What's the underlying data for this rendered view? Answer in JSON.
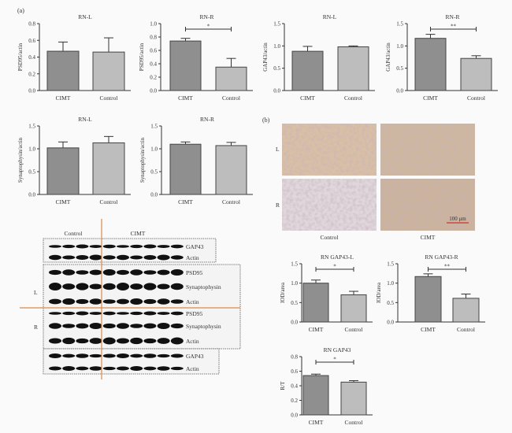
{
  "panel_labels": {
    "a": "(a)",
    "b": "(b)"
  },
  "colors": {
    "cimt_bar": "#8f8f8f",
    "control_bar": "#bdbdbd",
    "guide_line": "#d98a4a",
    "scale_bar": "#d03030"
  },
  "chart_data": [
    {
      "type": "bar",
      "title": "RN-L",
      "ylabel": "PSD95/actin",
      "categories": [
        "CIMT",
        "Control"
      ],
      "values": [
        0.47,
        0.46
      ],
      "error_top": [
        0.58,
        0.63
      ],
      "ylim": [
        0,
        0.8
      ],
      "yticks": [
        "0.0",
        "0.2",
        "0.4",
        "0.6",
        "0.8"
      ],
      "significance": ""
    },
    {
      "type": "bar",
      "title": "RN-R",
      "ylabel": "PSD95/actin",
      "categories": [
        "CIMT",
        "Control"
      ],
      "values": [
        0.74,
        0.35
      ],
      "error_top": [
        0.78,
        0.48
      ],
      "ylim": [
        0,
        1.0
      ],
      "yticks": [
        "0.0",
        "0.2",
        "0.4",
        "0.6",
        "0.8",
        "1.0"
      ],
      "significance": "*"
    },
    {
      "type": "bar",
      "title": "RN-L",
      "ylabel": "GAP43/actin",
      "categories": [
        "CIMT",
        "Control"
      ],
      "values": [
        0.88,
        0.98
      ],
      "error_top": [
        0.99,
        1.0
      ],
      "ylim": [
        0,
        1.5
      ],
      "yticks": [
        "0.0",
        "0.5",
        "1.0",
        "1.5"
      ],
      "significance": ""
    },
    {
      "type": "bar",
      "title": "RN-R",
      "ylabel": "GAP43/actin",
      "categories": [
        "CIMT",
        "Control"
      ],
      "values": [
        1.17,
        0.72
      ],
      "error_top": [
        1.26,
        0.78
      ],
      "ylim": [
        0,
        1.5
      ],
      "yticks": [
        "0.0",
        "0.5",
        "1.0",
        "1.5"
      ],
      "significance": "**"
    },
    {
      "type": "bar",
      "title": "RN-L",
      "ylabel": "Synaptophysin/actin",
      "categories": [
        "CIMT",
        "Control"
      ],
      "values": [
        1.02,
        1.13
      ],
      "error_top": [
        1.15,
        1.27
      ],
      "ylim": [
        0,
        1.5
      ],
      "yticks": [
        "0.0",
        "0.5",
        "1.0",
        "1.5"
      ],
      "significance": ""
    },
    {
      "type": "bar",
      "title": "RN-R",
      "ylabel": "Synaptophysin/actin",
      "categories": [
        "CIMT",
        "Control"
      ],
      "values": [
        1.1,
        1.07
      ],
      "error_top": [
        1.15,
        1.14
      ],
      "ylim": [
        0,
        1.5
      ],
      "yticks": [
        "0.0",
        "0.5",
        "1.0",
        "1.5"
      ],
      "significance": ""
    },
    {
      "type": "bar",
      "title": "RN GAP43-L",
      "ylabel": "IOD/area",
      "categories": [
        "CIMT",
        "Control"
      ],
      "values": [
        1.0,
        0.7
      ],
      "error_top": [
        1.08,
        0.79
      ],
      "ylim": [
        0,
        1.5
      ],
      "yticks": [
        "0.0",
        "0.5",
        "1.0",
        "1.5"
      ],
      "significance": "*"
    },
    {
      "type": "bar",
      "title": "RN GAP43-R",
      "ylabel": "IOD/area",
      "categories": [
        "CIMT",
        "Control"
      ],
      "values": [
        1.17,
        0.61
      ],
      "error_top": [
        1.24,
        0.72
      ],
      "ylim": [
        0,
        1.5
      ],
      "yticks": [
        "0.0",
        "0.5",
        "1.0",
        "1.5"
      ],
      "significance": "**"
    },
    {
      "type": "bar",
      "title": "RN GAP43",
      "ylabel": "R/T",
      "categories": [
        "CIMT",
        "Control"
      ],
      "values": [
        0.54,
        0.45
      ],
      "error_top": [
        0.56,
        0.47
      ],
      "ylim": [
        0,
        0.8
      ],
      "yticks": [
        "0.0",
        "0.2",
        "0.4",
        "0.6",
        "0.8"
      ],
      "significance": "*"
    }
  ],
  "western_blot": {
    "group_labels": [
      "Control",
      "CIMT"
    ],
    "side_labels": [
      "L",
      "R"
    ],
    "rows": [
      "GAP43",
      "Actin",
      "PSD95",
      "Synaptophysin",
      "Actin",
      "PSD95",
      "Synaptophysin",
      "Actin",
      "GAP43",
      "Actin"
    ],
    "lanes": 10
  },
  "histology": {
    "row_labels": [
      "L",
      "R"
    ],
    "column_labels": [
      "Control",
      "CIMT"
    ],
    "scale_bar": "100 μm"
  }
}
